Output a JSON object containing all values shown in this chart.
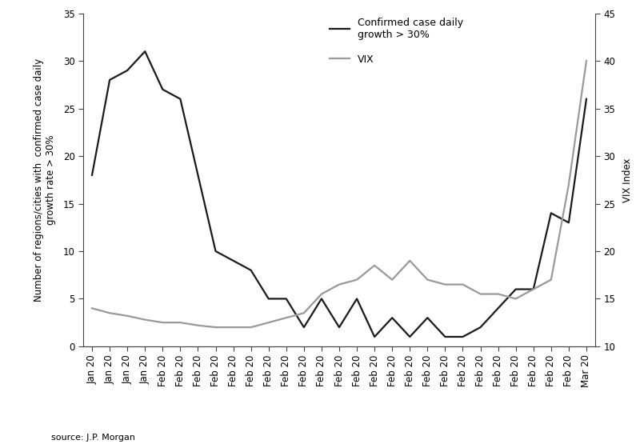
{
  "confirmed_y": [
    18,
    28,
    29,
    31,
    27,
    26,
    18,
    10,
    9,
    8,
    5,
    5,
    2,
    5,
    2,
    5,
    1,
    3,
    1,
    3,
    1,
    1,
    2,
    4,
    6,
    6,
    14,
    13,
    26
  ],
  "vix_y": [
    14.0,
    13.5,
    13.2,
    12.8,
    12.5,
    12.5,
    12.2,
    12.0,
    12.0,
    12.0,
    12.5,
    13.0,
    13.5,
    15.5,
    16.5,
    17.0,
    18.5,
    17.0,
    19.0,
    17.0,
    16.5,
    16.5,
    15.5,
    15.5,
    15.0,
    16.0,
    17.0,
    27.0,
    40.0
  ],
  "tick_labels": [
    "Jan 20",
    "Jan 20",
    "Jan 20",
    "Jan 20",
    "Feb 20",
    "Feb 20",
    "Feb 20",
    "Feb 20",
    "Feb 20",
    "Feb 20",
    "Feb 20",
    "Feb 20",
    "Feb 20",
    "Feb 20",
    "Feb 20",
    "Feb 20",
    "Feb 20",
    "Feb 20",
    "Feb 20",
    "Feb 20",
    "Feb 20",
    "Feb 20",
    "Feb 20",
    "Feb 20",
    "Feb 20",
    "Feb 20",
    "Feb 20",
    "Feb 20",
    "Mar 20"
  ],
  "confirmed_color": "#1a1a1a",
  "vix_color": "#999999",
  "ylim_left": [
    0,
    35
  ],
  "ylim_right": [
    10,
    45
  ],
  "yticks_left": [
    0,
    5,
    10,
    15,
    20,
    25,
    30,
    35
  ],
  "yticks_right": [
    10,
    15,
    20,
    25,
    30,
    35,
    40,
    45
  ],
  "ylabel_left": "Number of regions/cities with  confirmed case daily\ngrowth rate > 30%",
  "ylabel_right": "VIX Index",
  "legend_confirmed": "Confirmed case daily\ngrowth > 30%",
  "legend_vix": "VIX",
  "source_text": "source: J.P. Morgan",
  "linewidth": 1.6
}
